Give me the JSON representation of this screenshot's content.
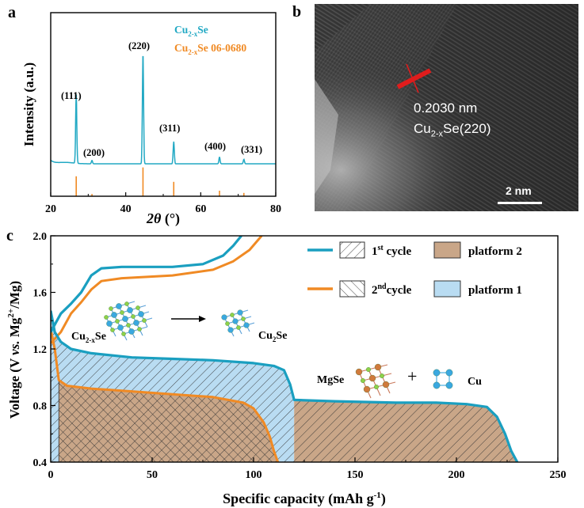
{
  "panel_a": {
    "letter": "a",
    "legend": [
      {
        "base": "Cu",
        "sub": "2-x",
        "rest": "Se",
        "color": "#22a9c4"
      },
      {
        "base": "Cu",
        "sub": "2-x",
        "rest": "Se 06-0680",
        "color": "#f08a24"
      }
    ],
    "ylabel": "Intensity (a.u.)",
    "xlabel_main": "2θ",
    "xlabel_unit": " (°)",
    "peak_labels": [
      "(111)",
      "(200)",
      "(220)",
      "(311)",
      "(400)",
      "(331)"
    ]
  },
  "panel_b": {
    "letter": "b",
    "d_spacing": "0.2030 nm",
    "phase_base": "Cu",
    "phase_sub": "2-x",
    "phase_rest": "Se(220)",
    "scale_bar": "2 nm"
  },
  "panel_c": {
    "letter": "c",
    "ylabel_pre": "Voltage (V ",
    "ylabel_vs": "vs.",
    "ylabel_mg": " Mg",
    "ylabel_sup": "2+",
    "ylabel_post": "/Mg)",
    "xlabel_pre": "Specific capacity (mAh g",
    "xlabel_sup": "-1",
    "xlabel_post": ")",
    "legend": {
      "cycle1_pre": "1",
      "cycle1_sup": "st",
      "cycle1_post": " cycle",
      "cycle2_pre": "2",
      "cycle2_sup": "nd",
      "cycle2_post": "cycle",
      "platform2": "platform 2",
      "platform1": "platform 1"
    },
    "annotations": {
      "left_base": "Cu",
      "left_sub": "2-x",
      "left_rest": "Se",
      "right_base": "Cu",
      "right_sub": "2",
      "right_rest": "Se",
      "mgse": "MgSe",
      "plus": "+",
      "cu": "Cu"
    }
  },
  "colors": {
    "xrd": "#22a9c4",
    "ref": "#f08a24",
    "cycle1": "#1a9fc0",
    "cycle2": "#f08a24",
    "platform1": "#b9dcf2",
    "platform2": "#c9a688",
    "hatch": "#3a3a3a"
  },
  "chart_data": [
    {
      "type": "line",
      "panel": "a",
      "xlabel": "2θ (°)",
      "ylabel": "Intensity (a.u.)",
      "xlim": [
        20,
        80
      ],
      "xticks": [
        20,
        40,
        60,
        80
      ],
      "series": [
        {
          "name": "Cu2-xSe",
          "peaks": [
            {
              "x": 26.8,
              "height": 0.62,
              "label": "(111)"
            },
            {
              "x": 31.0,
              "height": 0.03,
              "label": "(200)"
            },
            {
              "x": 44.6,
              "height": 1.0,
              "label": "(220)"
            },
            {
              "x": 52.8,
              "height": 0.2,
              "label": "(311)"
            },
            {
              "x": 65.0,
              "height": 0.06,
              "label": "(400)"
            },
            {
              "x": 71.5,
              "height": 0.04,
              "label": "(331)"
            }
          ]
        },
        {
          "name": "Cu2-xSe 06-0680",
          "sticks": [
            {
              "x": 26.8,
              "height": 0.18
            },
            {
              "x": 31.0,
              "height": 0.02
            },
            {
              "x": 44.6,
              "height": 0.26
            },
            {
              "x": 52.8,
              "height": 0.13
            },
            {
              "x": 65.0,
              "height": 0.05
            },
            {
              "x": 71.5,
              "height": 0.03
            }
          ]
        }
      ]
    },
    {
      "type": "line",
      "panel": "c",
      "xlabel": "Specific capacity (mAh g-1)",
      "ylabel": "Voltage (V vs. Mg2+/Mg)",
      "xlim": [
        0,
        250
      ],
      "ylim": [
        0.4,
        2.0
      ],
      "xticks": [
        0,
        50,
        100,
        150,
        200,
        250
      ],
      "yticks": [
        0.4,
        0.8,
        1.2,
        1.6,
        2.0
      ],
      "series": [
        {
          "name": "1st cycle discharge",
          "points": [
            [
              0,
              1.47
            ],
            [
              2,
              1.32
            ],
            [
              5,
              1.25
            ],
            [
              10,
              1.2
            ],
            [
              20,
              1.17
            ],
            [
              40,
              1.14
            ],
            [
              60,
              1.13
            ],
            [
              80,
              1.12
            ],
            [
              100,
              1.1
            ],
            [
              110,
              1.08
            ],
            [
              115,
              1.05
            ],
            [
              118,
              0.95
            ],
            [
              120,
              0.84
            ],
            [
              140,
              0.83
            ],
            [
              170,
              0.82
            ],
            [
              190,
              0.82
            ],
            [
              205,
              0.81
            ],
            [
              215,
              0.79
            ],
            [
              220,
              0.72
            ],
            [
              224,
              0.6
            ],
            [
              227,
              0.48
            ],
            [
              230,
              0.4
            ]
          ]
        },
        {
          "name": "1st cycle charge",
          "points": [
            [
              0,
              1.32
            ],
            [
              5,
              1.45
            ],
            [
              10,
              1.52
            ],
            [
              15,
              1.6
            ],
            [
              20,
              1.72
            ],
            [
              25,
              1.77
            ],
            [
              35,
              1.78
            ],
            [
              60,
              1.78
            ],
            [
              75,
              1.8
            ],
            [
              85,
              1.86
            ],
            [
              90,
              1.93
            ],
            [
              94,
              2.0
            ]
          ]
        },
        {
          "name": "2nd cycle discharge",
          "points": [
            [
              0,
              1.34
            ],
            [
              2,
              1.2
            ],
            [
              4,
              0.98
            ],
            [
              8,
              0.94
            ],
            [
              20,
              0.92
            ],
            [
              40,
              0.9
            ],
            [
              60,
              0.88
            ],
            [
              80,
              0.86
            ],
            [
              95,
              0.82
            ],
            [
              100,
              0.78
            ],
            [
              105,
              0.68
            ],
            [
              108,
              0.58
            ],
            [
              110,
              0.48
            ],
            [
              112,
              0.4
            ]
          ]
        },
        {
          "name": "2nd cycle charge",
          "points": [
            [
              0,
              1.24
            ],
            [
              5,
              1.32
            ],
            [
              10,
              1.45
            ],
            [
              15,
              1.53
            ],
            [
              20,
              1.62
            ],
            [
              25,
              1.68
            ],
            [
              35,
              1.7
            ],
            [
              60,
              1.72
            ],
            [
              80,
              1.76
            ],
            [
              90,
              1.82
            ],
            [
              98,
              1.9
            ],
            [
              104,
              2.0
            ]
          ]
        }
      ],
      "regions": [
        {
          "name": "platform 1",
          "x_range": [
            0,
            120
          ]
        },
        {
          "name": "platform 2",
          "x_range": [
            120,
            230
          ]
        }
      ]
    }
  ]
}
